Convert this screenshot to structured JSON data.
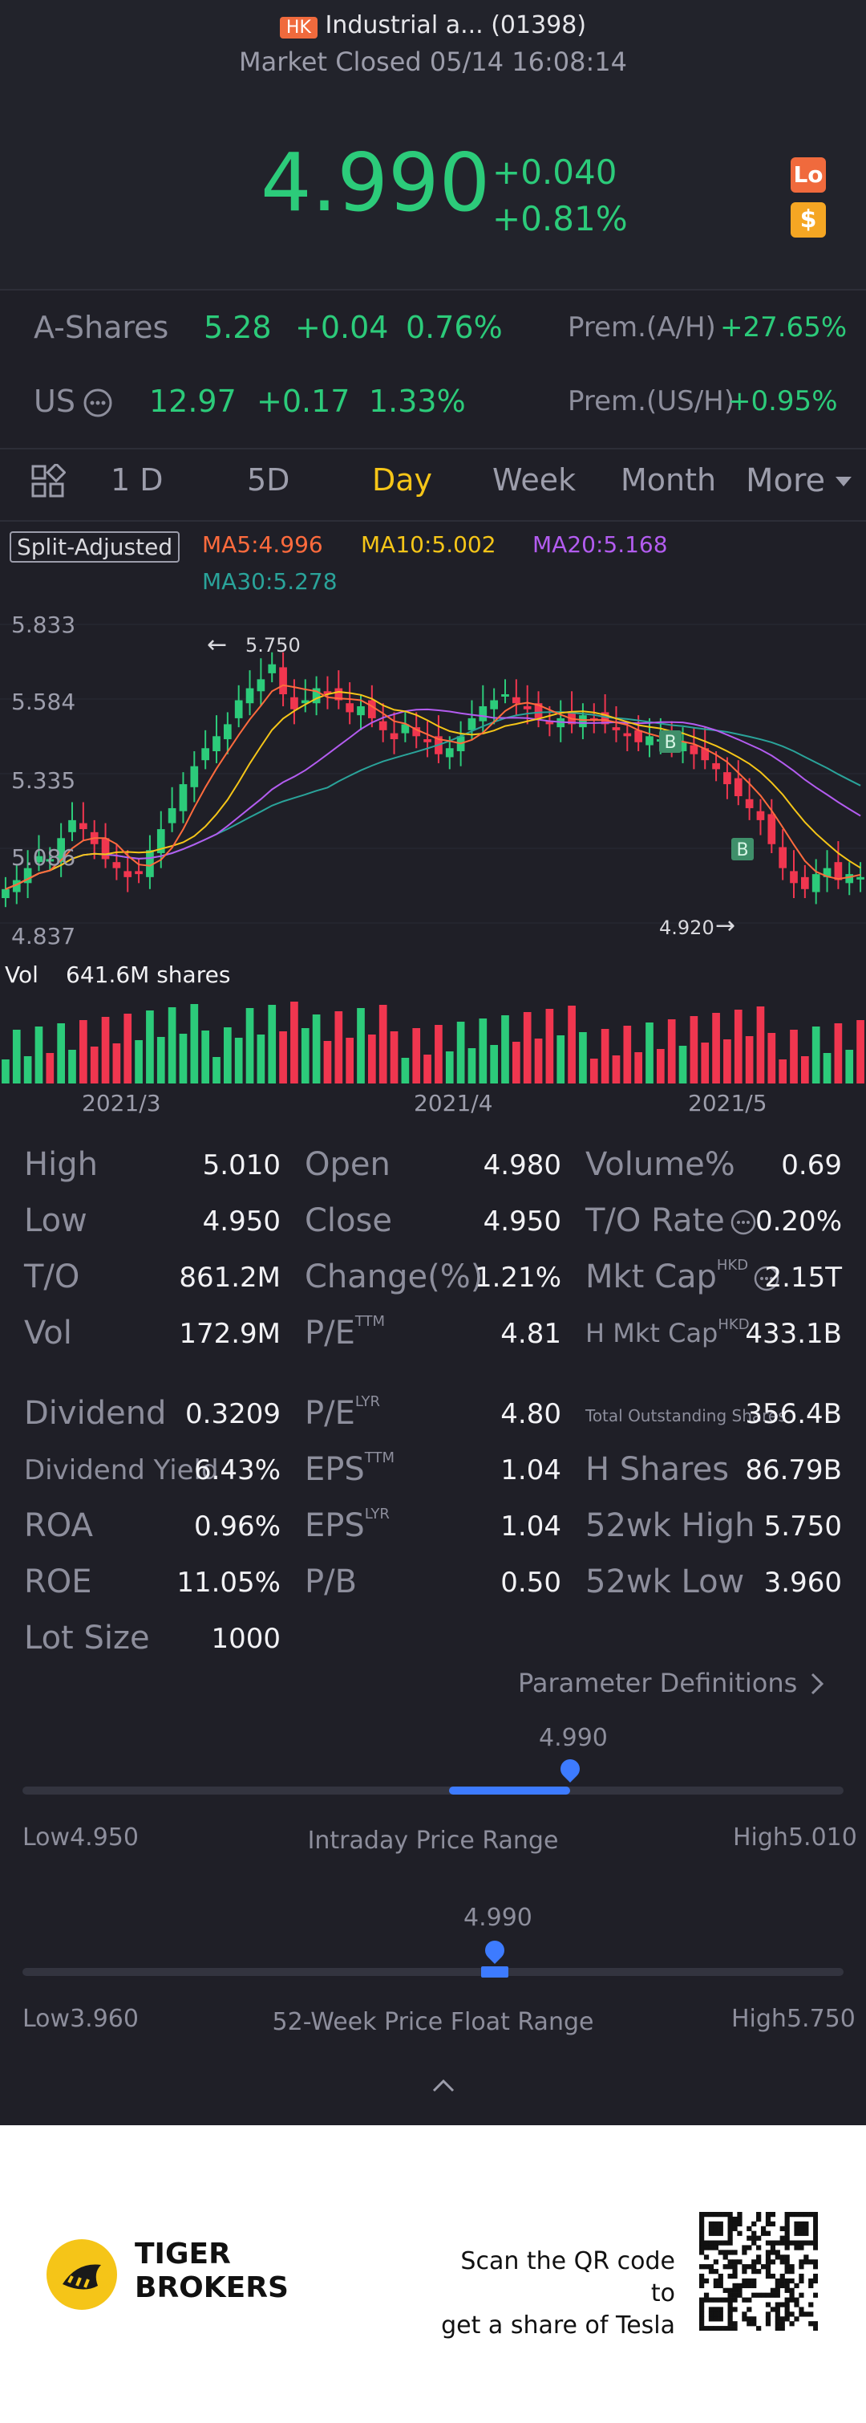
{
  "header": {
    "exchange_badge": "HK",
    "title": "Industrial a... (01398)",
    "status": "Market Closed 05/14 16:08:14",
    "price": "4.990",
    "change": "+0.040",
    "change_pct": "+0.81%",
    "badge_lo": "Lo",
    "badge_dollar": "$"
  },
  "a_shares": {
    "label": "A-Shares",
    "price": "5.28",
    "change": "+0.04",
    "pct": "0.76%",
    "prem_label": "Prem.(A/H)",
    "prem_value": "+27.65%"
  },
  "us": {
    "label": "US",
    "price": "12.97",
    "change": "+0.17",
    "pct": "1.33%",
    "prem_label": "Prem.(US/H)",
    "prem_value": "+0.95%"
  },
  "tabs": [
    "1 D",
    "5D",
    "Day",
    "Week",
    "Month",
    "More"
  ],
  "active_tab": "Day",
  "chart": {
    "adjust_label": "Split-Adjusted",
    "ma5": "MA5:4.996",
    "ma10": "MA10:5.002",
    "ma20": "MA20:5.168",
    "ma30": "MA30:5.278",
    "y_labels": [
      "5.833",
      "5.584",
      "5.335",
      "5.086",
      "4.837"
    ],
    "high_marker": "5.750",
    "low_marker": "4.920",
    "vol_label": "Vol",
    "vol_value": "641.6M shares",
    "x_labels": [
      "2021/3",
      "2021/4",
      "2021/5"
    ],
    "marker_b": "B",
    "colors": {
      "up": "#2ccb7a",
      "down": "#f0364f",
      "ma5": "#ff6b3d",
      "ma10": "#f5c518",
      "ma20": "#b35cf0",
      "ma30": "#2aa39a"
    }
  },
  "chart_data": {
    "type": "candlestick",
    "y_range": [
      4.837,
      5.833
    ],
    "high": 5.75,
    "low": 4.92,
    "ma": {
      "MA5": 4.996,
      "MA10": 5.002,
      "MA20": 5.168,
      "MA30": 5.278
    },
    "volume": "641.6M shares",
    "x_labels": [
      "2021/3",
      "2021/4",
      "2021/5"
    ]
  },
  "stats": {
    "col1": [
      {
        "label": "High",
        "value": "5.010"
      },
      {
        "label": "Low",
        "value": "4.950"
      },
      {
        "label": "T/O",
        "value": "861.2M"
      },
      {
        "label": "Vol",
        "value": "172.9M"
      },
      {
        "label": "Dividend",
        "value": "0.3209"
      },
      {
        "label": "Dividend Yield",
        "value": "6.43%"
      },
      {
        "label": "ROA",
        "value": "0.96%"
      },
      {
        "label": "ROE",
        "value": "11.05%"
      },
      {
        "label": "Lot Size",
        "value": "1000"
      }
    ],
    "col2": [
      {
        "label": "Open",
        "value": "4.980"
      },
      {
        "label": "Close",
        "value": "4.950"
      },
      {
        "label": "Change(%)",
        "value": "1.21%"
      },
      {
        "label": "P/E",
        "sup": "TTM",
        "value": "4.81"
      },
      {
        "label": "P/E",
        "sup": "LYR",
        "value": "4.80"
      },
      {
        "label": "EPS",
        "sup": "TTM",
        "value": "1.04"
      },
      {
        "label": "EPS",
        "sup": "LYR",
        "value": "1.04"
      },
      {
        "label": "P/B",
        "value": "0.50"
      }
    ],
    "col3": [
      {
        "label": "Volume%",
        "value": "0.69"
      },
      {
        "label": "T/O Rate",
        "value": "0.20%"
      },
      {
        "label": "Mkt Cap",
        "sup": "HKD",
        "value": "2.15T"
      },
      {
        "label": "H Mkt Cap",
        "sup": "HKD",
        "value": "433.1B"
      },
      {
        "label": "Total Outstanding Shares",
        "value": "356.4B"
      },
      {
        "label": "H Shares",
        "value": "86.79B"
      },
      {
        "label": "52wk High",
        "value": "5.750"
      },
      {
        "label": "52wk Low",
        "value": "3.960"
      }
    ]
  },
  "param_link": "Parameter Definitions",
  "intraday": {
    "value": "4.990",
    "low_label": "Low",
    "low": "4.950",
    "high_label": "High",
    "high": "5.010",
    "title": "Intraday Price Range",
    "position": 0.667
  },
  "week52": {
    "value": "4.990",
    "low_label": "Low",
    "low": "3.960",
    "high_label": "High",
    "high": "5.750",
    "title": "52-Week Price Float Range",
    "position": 0.575
  },
  "footer": {
    "brand_line1": "TIGER",
    "brand_line2": "BROKERS",
    "promo_line1": "Scan the QR code to",
    "promo_line2": "get a share of Tesla"
  }
}
